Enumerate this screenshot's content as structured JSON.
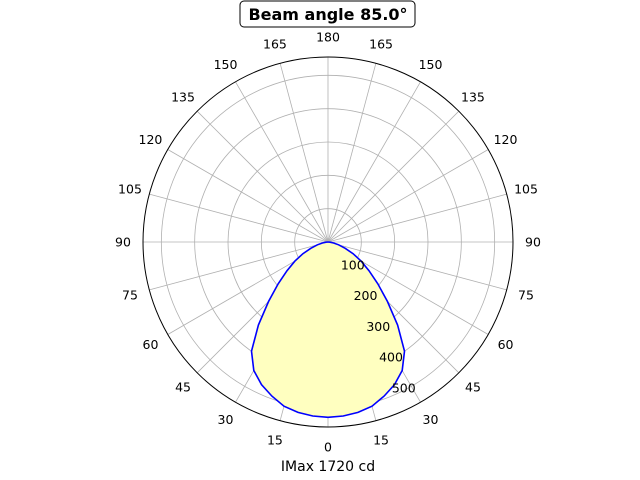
{
  "chart_data": {
    "type": "polar-line",
    "title": "Beam angle 85.0°",
    "xlabel": "IMax 1720 cd",
    "angle_tick_labels": [
      "0",
      "15",
      "30",
      "45",
      "60",
      "75",
      "90",
      "105",
      "120",
      "135",
      "150",
      "165",
      "180"
    ],
    "radial_ticks": [
      100,
      200,
      300,
      400,
      500
    ],
    "rlim": [
      0,
      555
    ],
    "zero_location": "bottom",
    "symmetric": true,
    "grid": true,
    "series": [
      {
        "angles_deg": [
          0,
          5,
          10,
          15,
          20,
          25,
          30,
          35,
          40,
          45,
          50,
          55,
          60,
          65,
          70,
          75,
          80,
          85,
          90
        ],
        "values": [
          526,
          524,
          519,
          510,
          492,
          472,
          445,
          400,
          325,
          252,
          195,
          150,
          115,
          83,
          55,
          33,
          17,
          6,
          0
        ]
      }
    ],
    "colors": {
      "line": "#0000ff",
      "fill": "#ffffc0",
      "grid": "#b0b0b0"
    }
  }
}
